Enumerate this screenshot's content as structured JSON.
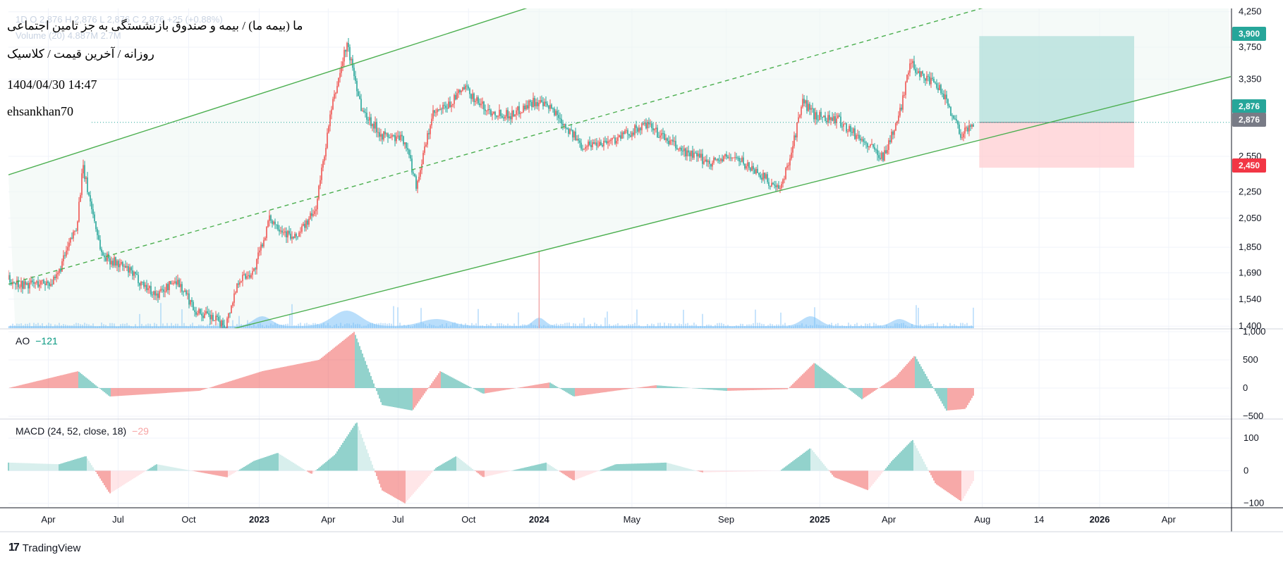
{
  "header": {
    "ohlc_ghost": "1D  O 2,876  H 2,876  L 2,876  C 2,876  +25 (+0.88%)",
    "volume_ghost": "Volume (20)  4.887M  2.7M",
    "symbol_title": "ما (بیمه ما) / بیمه و صندوق بازنشستگی به جز تامین اجتماعی",
    "chart_info": "روزانه / آخرین قیمت / کلاسیک",
    "datetime": "1404/04/30 14:47",
    "author": "ehsankhan70"
  },
  "price_tags": {
    "target": "3,900",
    "current_a": "2,876",
    "current_b": "2,876",
    "stop": "2,450"
  },
  "colors": {
    "up": "#ef5350",
    "down": "#26a69a",
    "channel": "#4caf50",
    "tp_zone": "#b2dfdb",
    "sl_zone": "#ffcdd2",
    "volume": "#64b5f6",
    "target_tag": "#26a69a",
    "current_tag_green": "#26a69a",
    "current_tag_gray": "#787b86",
    "stop_tag": "#f23645"
  },
  "indicators": {
    "ao_label": "AO",
    "ao_value": "−121",
    "macd_label": "MACD (24, 52, close, 18)",
    "macd_value": "−29"
  },
  "footer": {
    "logo": "17",
    "brand": "TradingView"
  },
  "chart_data": [
    {
      "type": "candlestick",
      "title": "ما (بیمه ما) / بیمه و صندوق بازنشستگی به جز تامین اجتماعی",
      "x_tick_labels": [
        "Apr",
        "Jul",
        "Oct",
        "2023",
        "Apr",
        "Jul",
        "Oct",
        "2024",
        "May",
        "Sep",
        "2025",
        "Apr",
        "Aug",
        "14",
        "2026",
        "Apr"
      ],
      "y_tick_labels": [
        "4,250",
        "3,750",
        "3,350",
        "2,550",
        "2,250",
        "2,050",
        "1,850",
        "1,690",
        "1,540",
        "1,400"
      ],
      "y_scale": "log",
      "ylim": [
        1390,
        4300
      ],
      "close_path": {
        "x": [
          "2022-02-08",
          "2022-03-01",
          "2022-04-10",
          "2022-05-08",
          "2022-05-16",
          "2022-06-10",
          "2022-07-10",
          "2022-08-20",
          "2022-09-15",
          "2022-10-10",
          "2022-11-10",
          "2022-11-18",
          "2022-12-05",
          "2022-12-25",
          "2023-01-15",
          "2023-02-15",
          "2023-03-15",
          "2023-04-05",
          "2023-04-25",
          "2023-05-05",
          "2023-05-15",
          "2023-06-10",
          "2023-07-10",
          "2023-07-25",
          "2023-08-15",
          "2023-09-05",
          "2023-09-25",
          "2023-10-25",
          "2023-11-25",
          "2023-12-25",
          "2024-01-20",
          "2024-02-25",
          "2024-04-05",
          "2024-05-20",
          "2024-07-05",
          "2024-08-10",
          "2024-09-10",
          "2024-10-15",
          "2024-11-10",
          "2024-11-25",
          "2024-12-10",
          "2024-12-25",
          "2025-01-25",
          "2025-03-05",
          "2025-03-25",
          "2025-04-15",
          "2025-04-28",
          "2025-05-15",
          "2025-06-10",
          "2025-07-05",
          "2025-07-21"
        ],
        "y": [
          1650,
          1620,
          1640,
          2000,
          2450,
          1800,
          1720,
          1560,
          1650,
          1480,
          1420,
          1400,
          1650,
          1700,
          2050,
          1900,
          2100,
          3000,
          3800,
          3400,
          3000,
          2750,
          2700,
          2300,
          2950,
          3050,
          3250,
          3000,
          2950,
          3100,
          3000,
          2650,
          2700,
          2850,
          2600,
          2500,
          2550,
          2400,
          2250,
          2600,
          3100,
          2950,
          2900,
          2650,
          2550,
          2950,
          3550,
          3400,
          3200,
          2750,
          2876
        ]
      },
      "volume_values": {
        "label": "Volume (20)",
        "value": "4.887M",
        "ma": "2.7M"
      },
      "long_position": {
        "entry": 2876,
        "target": 3900,
        "stop": 2450
      },
      "channel_upper": {
        "x": [
          "2021-12-01",
          "2023-12-01"
        ],
        "y": [
          2250,
          4250
        ]
      },
      "channel_middle": {
        "x": [
          "2021-12-01",
          "2025-07-15"
        ],
        "y": [
          1540,
          4250
        ]
      },
      "channel_lower": {
        "x": [
          "2022-12-01",
          "2026-04-25"
        ],
        "y": [
          1390,
          3250
        ]
      },
      "last_price": 2876
    },
    {
      "type": "bar",
      "title": "AO",
      "y_tick_labels": [
        "1,000",
        "500",
        "0",
        "−500"
      ],
      "ylim": [
        -500,
        1000
      ],
      "last_value": -121,
      "x": [
        "2022-02-08",
        "2022-05-10",
        "2022-06-20",
        "2022-10-15",
        "2023-01-05",
        "2023-03-20",
        "2023-05-05",
        "2023-06-10",
        "2023-07-20",
        "2023-08-25",
        "2023-10-20",
        "2024-01-15",
        "2024-02-15",
        "2024-06-01",
        "2024-09-01",
        "2024-11-20",
        "2024-12-25",
        "2025-02-25",
        "2025-04-10",
        "2025-05-05",
        "2025-06-15",
        "2025-07-10",
        "2025-07-21"
      ],
      "values": [
        0,
        300,
        -150,
        -50,
        300,
        500,
        1000,
        -300,
        -400,
        300,
        -100,
        100,
        -150,
        50,
        -50,
        -20,
        450,
        -200,
        200,
        580,
        -400,
        -370,
        -121
      ]
    },
    {
      "type": "bar",
      "title": "MACD (24, 52, close, 18)",
      "y_tick_labels": [
        "100",
        "0",
        "−100"
      ],
      "ylim": [
        -105,
        150
      ],
      "last_value": -29,
      "x": [
        "2022-02-08",
        "2022-04-15",
        "2022-05-20",
        "2022-06-20",
        "2022-08-20",
        "2022-11-20",
        "2022-12-25",
        "2023-01-25",
        "2023-03-10",
        "2023-04-10",
        "2023-05-08",
        "2023-06-10",
        "2023-07-10",
        "2023-08-20",
        "2023-09-15",
        "2023-10-20",
        "2024-01-10",
        "2024-02-15",
        "2024-04-10",
        "2024-06-15",
        "2024-08-01",
        "2024-11-10",
        "2024-12-20",
        "2025-01-20",
        "2025-03-05",
        "2025-04-05",
        "2025-05-02",
        "2025-06-01",
        "2025-07-05",
        "2025-07-21"
      ],
      "values": [
        25,
        20,
        45,
        -70,
        20,
        -20,
        30,
        55,
        -10,
        50,
        150,
        -60,
        -100,
        10,
        45,
        -20,
        25,
        -30,
        20,
        25,
        -5,
        0,
        70,
        -20,
        -60,
        30,
        95,
        -40,
        -95,
        -29
      ]
    }
  ]
}
